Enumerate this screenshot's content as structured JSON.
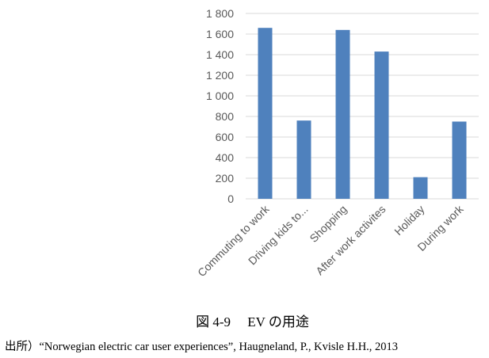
{
  "chart_data": {
    "type": "bar",
    "categories": [
      "Commuting to work",
      "Driving kids to...",
      "Shopping",
      "After work activites",
      "Holiday",
      "During work"
    ],
    "values": [
      1660,
      760,
      1640,
      1430,
      210,
      750
    ],
    "yticks": [
      "0",
      "200",
      "400",
      "600",
      "800",
      "1 000",
      "1 200",
      "1 400",
      "1 600",
      "1 800"
    ],
    "ylim": [
      0,
      1800
    ],
    "grid": true,
    "bar_color": "#4f81bd",
    "grid_color": "#d9d9d9",
    "title": "",
    "xlabel": "",
    "ylabel": ""
  },
  "caption": "図 4-9　 EV の用途",
  "source": "出所）“Norwegian electric car user experiences”, Haugneland, P., Kvisle H.H., 2013"
}
